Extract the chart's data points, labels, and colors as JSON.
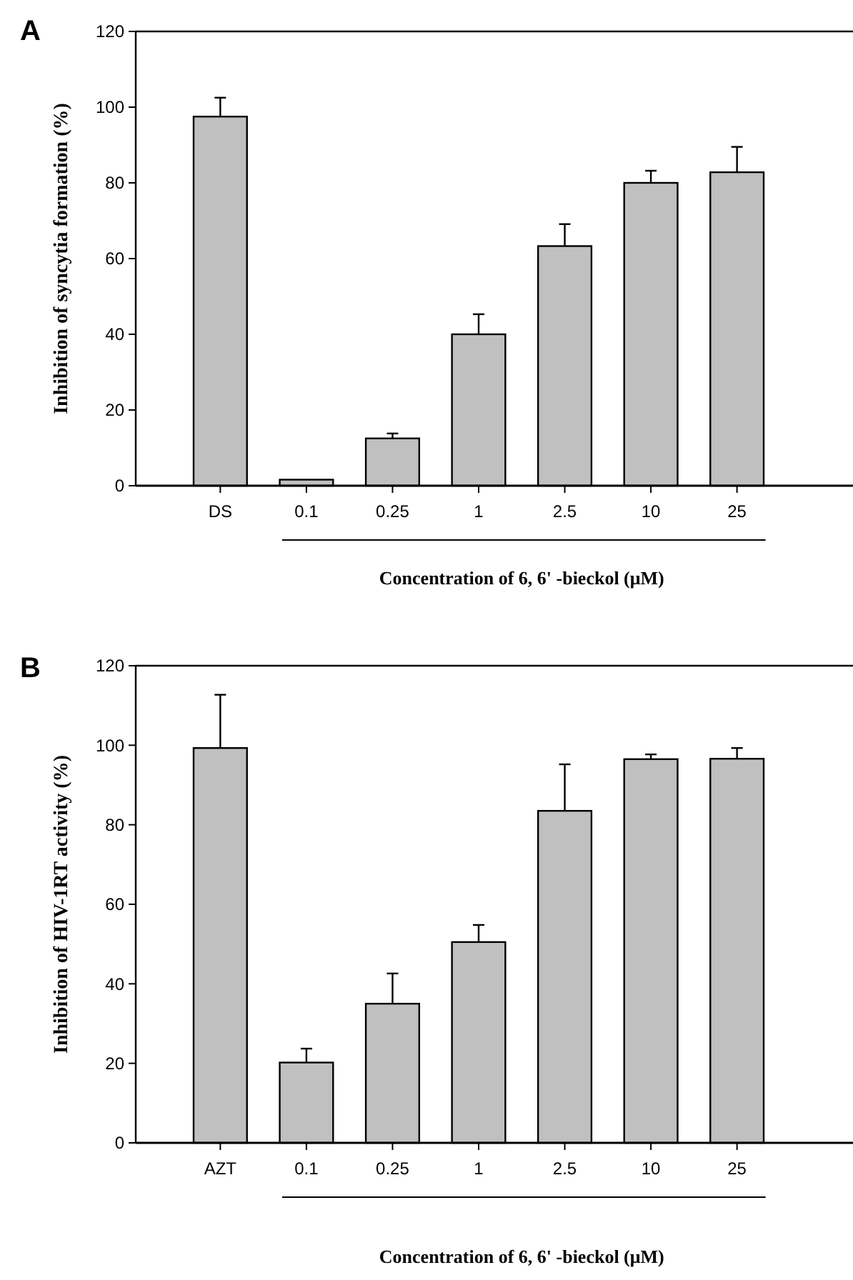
{
  "chart_data": [
    {
      "type": "bar",
      "title": "A",
      "ylabel": "Inhibition of syncytia formation (%)",
      "xlabel": "Concentration of 6, 6' -bieckol (μM)",
      "categories": [
        "DS",
        "0.1",
        "0.25",
        "1",
        "2.5",
        "10",
        "25"
      ],
      "series": [
        {
          "color": "#c0c0c0",
          "values": [
            97.5,
            1.6,
            12.5,
            40,
            63.3,
            80,
            82.8
          ],
          "errors": [
            [
              97.5,
              102.5
            ],
            null,
            [
              12.5,
              13.8
            ],
            [
              40,
              45.3
            ],
            [
              63.3,
              69.1
            ],
            [
              80,
              83.2
            ],
            [
              82.8,
              89.5
            ]
          ]
        }
      ],
      "ylim": [
        0,
        120
      ],
      "yticks": [
        0,
        20,
        40,
        60,
        80,
        100,
        120
      ]
    },
    {
      "type": "bar",
      "title": "B",
      "ylabel": "Inhibition of HIV-1RT activity (%)",
      "xlabel": "Concentration of 6, 6' -bieckol (μM)",
      "categories": [
        "AZT",
        "0.1",
        "0.25",
        "1",
        "2.5",
        "10",
        "25"
      ],
      "series": [
        {
          "color": "#c0c0c0",
          "values": [
            99.3,
            20.2,
            35,
            50.5,
            83.5,
            96.5,
            96.6
          ],
          "errors": [
            [
              99.3,
              112.7
            ],
            [
              20.2,
              23.7
            ],
            [
              35,
              42.6
            ],
            [
              50.5,
              54.8
            ],
            [
              83.5,
              95.2
            ],
            [
              96.5,
              97.7
            ],
            [
              96.6,
              99.3
            ]
          ]
        }
      ],
      "ylim": [
        0,
        120
      ],
      "yticks": [
        0,
        20,
        40,
        60,
        80,
        100,
        120
      ]
    }
  ]
}
